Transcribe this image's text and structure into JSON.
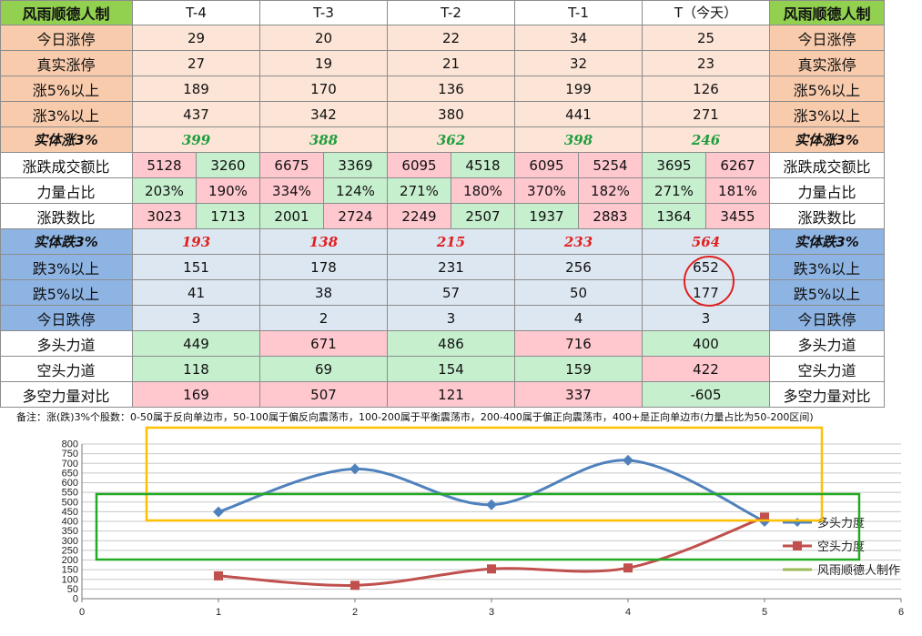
{
  "header": {
    "left_label": "风雨顺德人制",
    "right_label": "风雨顺德人制",
    "columns": [
      "T-4",
      "T-3",
      "T-2",
      "T-1",
      "T（今天）"
    ]
  },
  "rows": [
    {
      "label": "今日涨停",
      "type": "single",
      "bg": "#fce4d6",
      "values": [
        "29",
        "20",
        "22",
        "34",
        "25"
      ]
    },
    {
      "label": "真实涨停",
      "type": "single",
      "bg": "#fce4d6",
      "values": [
        "27",
        "19",
        "21",
        "32",
        "23"
      ]
    },
    {
      "label": "涨5%以上",
      "type": "single",
      "bg": "#fce4d6",
      "values": [
        "189",
        "170",
        "136",
        "199",
        "126"
      ]
    },
    {
      "label": "涨3%以上",
      "type": "single",
      "bg": "#fce4d6",
      "values": [
        "437",
        "342",
        "380",
        "441",
        "271"
      ]
    },
    {
      "label": "实体涨3%",
      "type": "emph-up",
      "bg": "#fce4d6",
      "values": [
        "399",
        "388",
        "362",
        "398",
        "246"
      ]
    },
    {
      "label": "涨跌成交额比",
      "type": "pair",
      "bg": "#ffffff",
      "values": [
        [
          "5128",
          "3260"
        ],
        [
          "6675",
          "3369"
        ],
        [
          "6095",
          "4518"
        ],
        [
          "6095",
          "5254"
        ],
        [
          "3695",
          "6267"
        ]
      ],
      "colors": [
        [
          "#ffc7ce",
          "#c6efce"
        ],
        [
          "#ffc7ce",
          "#c6efce"
        ],
        [
          "#ffc7ce",
          "#c6efce"
        ],
        [
          "#ffc7ce",
          "#ffc7ce"
        ],
        [
          "#c6efce",
          "#ffc7ce"
        ]
      ]
    },
    {
      "label": "力量占比",
      "type": "pair",
      "bg": "#ffffff",
      "values": [
        [
          "203%",
          "190%"
        ],
        [
          "334%",
          "124%"
        ],
        [
          "271%",
          "180%"
        ],
        [
          "370%",
          "182%"
        ],
        [
          "271%",
          "181%"
        ]
      ],
      "colors": [
        [
          "#c6efce",
          "#ffc7ce"
        ],
        [
          "#ffc7ce",
          "#c6efce"
        ],
        [
          "#c6efce",
          "#ffc7ce"
        ],
        [
          "#ffc7ce",
          "#ffc7ce"
        ],
        [
          "#c6efce",
          "#ffc7ce"
        ]
      ]
    },
    {
      "label": "涨跌数比",
      "type": "pair",
      "bg": "#ffffff",
      "values": [
        [
          "3023",
          "1713"
        ],
        [
          "2001",
          "2724"
        ],
        [
          "2249",
          "2507"
        ],
        [
          "1937",
          "2883"
        ],
        [
          "1364",
          "3455"
        ]
      ],
      "colors": [
        [
          "#ffc7ce",
          "#c6efce"
        ],
        [
          "#c6efce",
          "#ffc7ce"
        ],
        [
          "#ffc7ce",
          "#c6efce"
        ],
        [
          "#c6efce",
          "#ffc7ce"
        ],
        [
          "#c6efce",
          "#ffc7ce"
        ]
      ]
    },
    {
      "label": "实体跌3%",
      "type": "emph-down",
      "bg": "#dde7f2",
      "values": [
        "193",
        "138",
        "215",
        "233",
        "564"
      ]
    },
    {
      "label": "跌3%以上",
      "type": "single",
      "bg": "#dde7f2",
      "values": [
        "151",
        "178",
        "231",
        "256",
        "652"
      ]
    },
    {
      "label": "跌5%以上",
      "type": "single",
      "bg": "#dde7f2",
      "values": [
        "41",
        "38",
        "57",
        "50",
        "177"
      ]
    },
    {
      "label": "今日跌停",
      "type": "single",
      "bg": "#dde7f2",
      "values": [
        "3",
        "2",
        "3",
        "4",
        "3"
      ]
    },
    {
      "label": "多头力道",
      "type": "single",
      "bg": "#ffffff",
      "values": [
        "449",
        "671",
        "486",
        "716",
        "400"
      ],
      "cell_colors": [
        "#c6efce",
        "#ffc7ce",
        "#c6efce",
        "#ffc7ce",
        "#c6efce"
      ]
    },
    {
      "label": "空头力道",
      "type": "single",
      "bg": "#ffffff",
      "values": [
        "118",
        "69",
        "154",
        "159",
        "422"
      ],
      "cell_colors": [
        "#c6efce",
        "#c6efce",
        "#c6efce",
        "#c6efce",
        "#ffc7ce"
      ]
    },
    {
      "label": "多空力量对比",
      "type": "single",
      "bg": "#ffffff",
      "values": [
        "169",
        "507",
        "121",
        "337",
        "-605"
      ],
      "cell_colors": [
        "#ffc7ce",
        "#ffc7ce",
        "#ffc7ce",
        "#ffc7ce",
        "#c6efce"
      ]
    }
  ],
  "colors": {
    "header_green": "#92d050",
    "label_peach": "#f8cbad",
    "label_blue": "#8eb4e3",
    "label_white": "#ffffff",
    "good_green": "#c6efce",
    "bad_red": "#ffc7ce",
    "circle_red": "#e02020",
    "box_orange": "#ffc000",
    "box_green": "#22aa22"
  },
  "note": "备注：涨(跌)3%个股数：0-50属于反向单边市，50-100属于偏反向震荡市，100-200属于平衡震荡市，200-400属于偏正向震荡市，400+是正向单边市(力量占比为50-200区间)",
  "chart_data": {
    "type": "scatter",
    "xlim": [
      0,
      6
    ],
    "ylim": [
      0,
      800
    ],
    "x_ticks": [
      "0",
      "1",
      "2",
      "3",
      "4",
      "5",
      "6"
    ],
    "y_ticks": [
      "0",
      "50",
      "100",
      "150",
      "200",
      "250",
      "300",
      "350",
      "400",
      "450",
      "500",
      "550",
      "600",
      "650",
      "700",
      "750",
      "800"
    ],
    "grid": true,
    "legend_position": "right",
    "series": [
      {
        "name": "多头力度",
        "color": "#4f81bd",
        "marker": "diamond",
        "x": [
          1,
          2,
          3,
          4,
          5
        ],
        "y": [
          449,
          671,
          486,
          716,
          400
        ]
      },
      {
        "name": "空头力度",
        "color": "#c0504d",
        "marker": "square",
        "x": [
          1,
          2,
          3,
          4,
          5
        ],
        "y": [
          118,
          69,
          154,
          159,
          422
        ]
      },
      {
        "name": "风雨顺德人制作",
        "color": "#9bbb59",
        "marker": "none",
        "x": [],
        "y": []
      }
    ]
  }
}
